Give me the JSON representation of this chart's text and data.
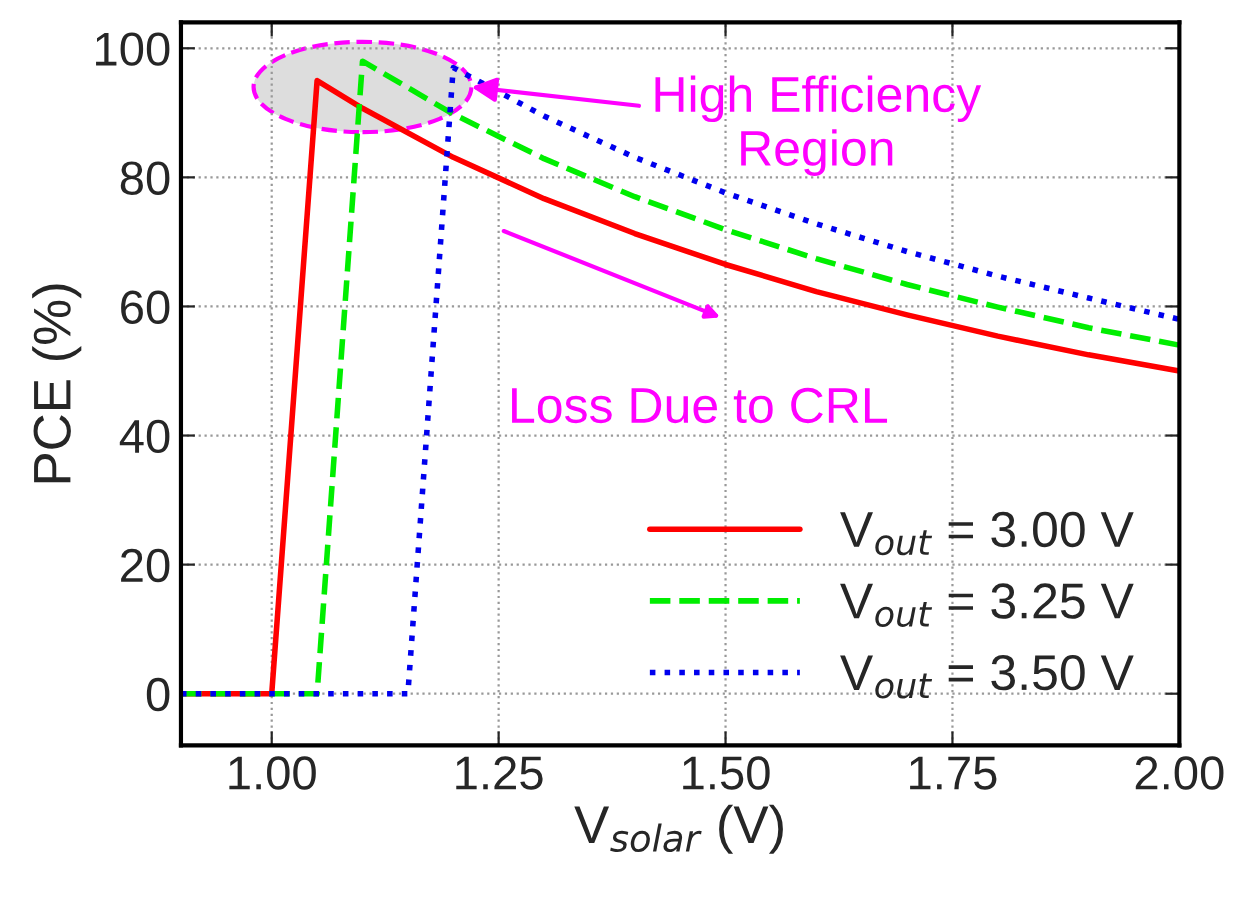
{
  "chart_data": {
    "type": "line",
    "xlabel": "V$_{solar}$ (V)",
    "ylabel": "PCE (%)",
    "xlim": [
      0.9,
      2.0
    ],
    "xticks": [
      {
        "value": 1.0,
        "label": "1.00"
      },
      {
        "value": 1.25,
        "label": "1.25"
      },
      {
        "value": 1.5,
        "label": "1.50"
      },
      {
        "value": 1.75,
        "label": "1.75"
      },
      {
        "value": 2.0,
        "label": "2.00"
      }
    ],
    "ylim": [
      -8,
      104
    ],
    "yticks": [
      0,
      20,
      40,
      60,
      80,
      100
    ],
    "grid": true,
    "legend": "bottom right",
    "marker": "none",
    "series": [
      {
        "name": "V$_{out}$ = 3.00 V",
        "color": "#ff0000",
        "line_style": "solid",
        "x": [
          0.9,
          1.0,
          1.05,
          1.1,
          1.2,
          1.3,
          1.4,
          1.5,
          1.6,
          1.7,
          1.8,
          1.9,
          2.0
        ],
        "values": [
          0,
          0,
          95,
          90.7,
          83.1,
          76.7,
          71.3,
          66.5,
          62.3,
          58.7,
          55.4,
          52.5,
          50
        ]
      },
      {
        "name": "V$_{out}$ = 3.25 V",
        "color": "#00ee00",
        "line_style": "dashed",
        "x": [
          0.9,
          1.05,
          1.1,
          1.2,
          1.3,
          1.4,
          1.5,
          1.6,
          1.7,
          1.8,
          1.9,
          2.0
        ],
        "values": [
          0,
          0,
          98,
          89.8,
          82.9,
          77,
          71.9,
          67.4,
          63.4,
          59.9,
          56.7,
          54
        ]
      },
      {
        "name": "V$_{out}$ = 3.50 V",
        "color": "#0000ee",
        "line_style": "dotted",
        "x": [
          0.9,
          1.15,
          1.2,
          1.3,
          1.4,
          1.5,
          1.6,
          1.7,
          1.8,
          1.9,
          2.0
        ],
        "values": [
          0,
          0,
          97,
          89.5,
          83.1,
          77.6,
          72.8,
          68.5,
          64.7,
          61.3,
          58
        ]
      }
    ],
    "annotations": [
      {
        "text": "High Efficiency\nRegion",
        "x": 1.22,
        "y": 94
      },
      "Loss Due to CRL"
    ]
  }
}
